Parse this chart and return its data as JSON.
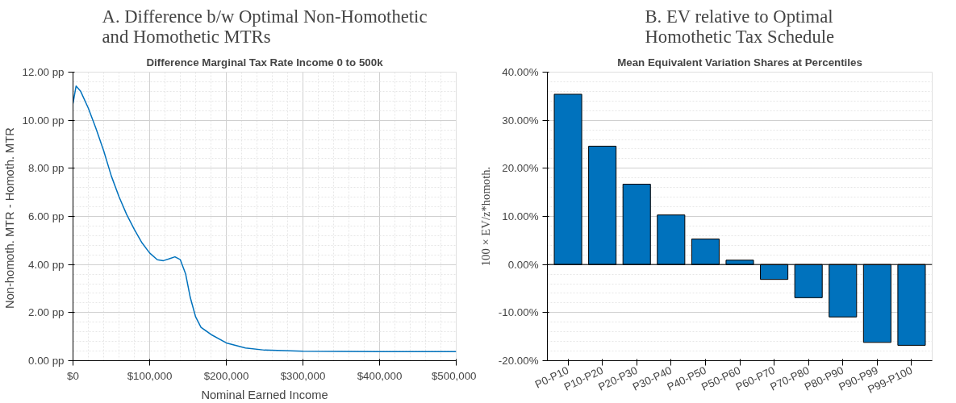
{
  "chart_data": [
    {
      "type": "line",
      "title": "A. Difference b/w Optimal Non-Homothetic\nand Homothetic MTRs",
      "subtitle": "Difference Marginal Tax Rate Income 0 to 500k",
      "xlabel": "Nominal Earned Income",
      "ylabel": "Non-homoth. MTR - Homoth.  MTR",
      "x": [
        0,
        4000,
        10000,
        20000,
        30000,
        40000,
        50000,
        60000,
        70000,
        80000,
        90000,
        100000,
        110000,
        118000,
        125000,
        133000,
        140000,
        147000,
        153000,
        160000,
        167000,
        180000,
        200000,
        225000,
        250000,
        300000,
        400000,
        500000
      ],
      "series": [
        {
          "color": "#0072bd",
          "values": [
            10.7,
            11.42,
            11.2,
            10.5,
            9.65,
            8.73,
            7.68,
            6.82,
            6.08,
            5.46,
            4.9,
            4.48,
            4.2,
            4.16,
            4.23,
            4.32,
            4.2,
            3.6,
            2.63,
            1.82,
            1.39,
            1.09,
            0.74,
            0.53,
            0.44,
            0.39,
            0.38,
            0.38
          ]
        }
      ],
      "xlim": [
        0,
        500000
      ],
      "ylim": [
        0,
        12
      ],
      "xticks": [
        {
          "value": 0,
          "label": "$0"
        },
        {
          "value": 100000,
          "label": "$100,000"
        },
        {
          "value": 200000,
          "label": "$200,000"
        },
        {
          "value": 300000,
          "label": "$300,000"
        },
        {
          "value": 400000,
          "label": "$400,000"
        },
        {
          "value": 500000,
          "label": "$500,000"
        }
      ],
      "yticks": [
        {
          "value": 0,
          "label": "0.00 pp"
        },
        {
          "value": 2,
          "label": "2.00 pp"
        },
        {
          "value": 4,
          "label": "4.00 pp"
        },
        {
          "value": 6,
          "label": "6.00 pp"
        },
        {
          "value": 8,
          "label": "8.00 pp"
        },
        {
          "value": 10,
          "label": "10.00 pp"
        },
        {
          "value": 12,
          "label": "12.00 pp"
        }
      ],
      "grid": true,
      "line_style": "solid"
    },
    {
      "type": "bar",
      "title": "B. EV relative to Optimal\nHomothetic Tax Schedule",
      "subtitle": "Mean Equivalent Variation Shares at Percentiles",
      "ylabel": "100 × EV/z*homoth.",
      "categories": [
        "P0-P10",
        "P10-P20",
        "P20-P30",
        "P30-P40",
        "P40-P50",
        "P50-P60",
        "P60-P70",
        "P70-P80",
        "P80-P90",
        "P90-P99",
        "P99-P100"
      ],
      "series": [
        {
          "color": "#0072bd",
          "values": [
            35.4,
            24.6,
            16.7,
            10.3,
            5.3,
            0.9,
            -3.1,
            -6.9,
            -10.9,
            -16.2,
            -16.8
          ]
        }
      ],
      "ylim": [
        -20,
        40
      ],
      "yticks": [
        {
          "value": -20,
          "label": "-20.00%"
        },
        {
          "value": -10,
          "label": "-10.00%"
        },
        {
          "value": 0,
          "label": "0.00%"
        },
        {
          "value": 10,
          "label": "10.00%"
        },
        {
          "value": 20,
          "label": "20.00%"
        },
        {
          "value": 30,
          "label": "30.00%"
        },
        {
          "value": 40,
          "label": "40.00%"
        }
      ],
      "grid": "y"
    }
  ]
}
